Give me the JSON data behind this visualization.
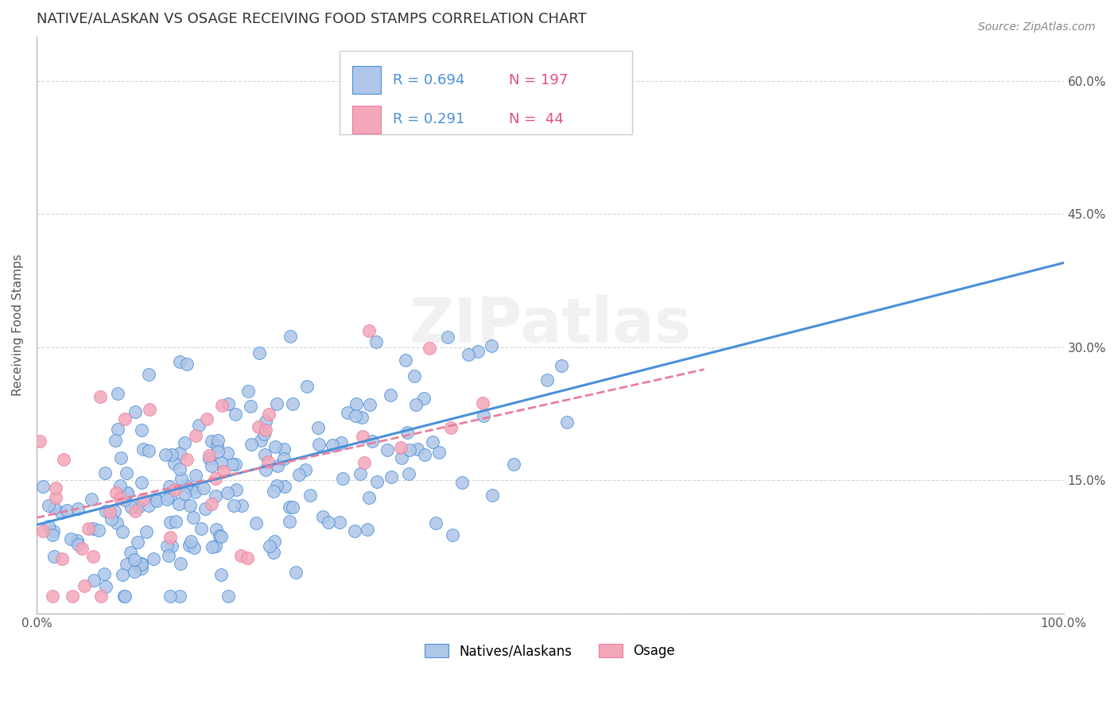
{
  "title": "NATIVE/ALASKAN VS OSAGE RECEIVING FOOD STAMPS CORRELATION CHART",
  "source": "Source: ZipAtlas.com",
  "ylabel": "Receiving Food Stamps",
  "xlim": [
    0,
    1.0
  ],
  "ylim": [
    0,
    0.65
  ],
  "x_ticks": [
    0.0,
    0.1,
    0.2,
    0.3,
    0.4,
    0.5,
    0.6,
    0.7,
    0.8,
    0.9,
    1.0
  ],
  "x_tick_labels": [
    "0.0%",
    "",
    "",
    "",
    "",
    "",
    "",
    "",
    "",
    "",
    "100.0%"
  ],
  "y_ticks": [
    0.0,
    0.15,
    0.3,
    0.45,
    0.6
  ],
  "y_tick_labels": [
    "",
    "15.0%",
    "30.0%",
    "45.0%",
    "60.0%"
  ],
  "grid_color": "#cccccc",
  "background_color": "#ffffff",
  "watermark": "ZIPatlas",
  "legend_R1": "R = 0.694",
  "legend_N1": "N = 197",
  "legend_R2": "R = 0.291",
  "legend_N2": "N =  44",
  "series1_color": "#aec6e8",
  "series2_color": "#f4a7b9",
  "line1_color": "#4a90d9",
  "line2_color": "#e87fa0",
  "title_color": "#333333",
  "axis_label_color": "#555555",
  "tick_color": "#555555",
  "legend_R_color": "#4a90d9",
  "legend_N_color": "#e05080",
  "trend1_x0": 0.0,
  "trend1_x1": 1.0,
  "trend1_y0": 0.1,
  "trend1_y1": 0.395,
  "trend2_x0": 0.0,
  "trend2_x1": 0.65,
  "trend2_y0": 0.108,
  "trend2_y1": 0.275
}
